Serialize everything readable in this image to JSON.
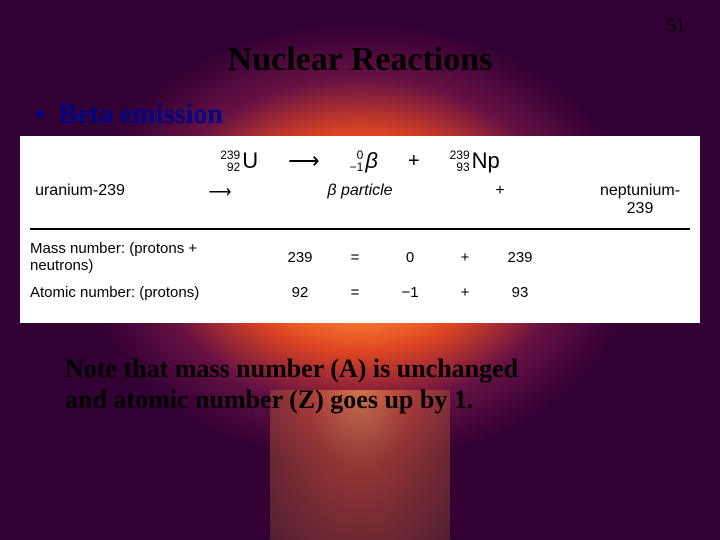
{
  "page": {
    "number": "51"
  },
  "title": "Nuclear Reactions",
  "bullet": {
    "label": "Beta emission"
  },
  "equation": {
    "reactant": {
      "mass": "239",
      "atomic": "92",
      "symbol": "U",
      "name": "uranium-239"
    },
    "arrow": "⟶",
    "particle": {
      "mass": "0",
      "atomic": "−1",
      "symbol": "β",
      "name": "β particle"
    },
    "plus": "+",
    "product": {
      "mass": "239",
      "atomic": "93",
      "symbol": "Np",
      "name": "neptunium-239"
    }
  },
  "conservation": {
    "mass": {
      "label": "Mass number: (protons + neutrons)",
      "lhs": "239",
      "eq": "=",
      "p1": "0",
      "plus": "+",
      "p2": "239"
    },
    "atomic": {
      "label": "Atomic number: (protons)",
      "lhs": "92",
      "eq": "=",
      "p1": "−1",
      "plus": "+",
      "p2": "93"
    }
  },
  "note": {
    "line1": "Note that mass number (A) is unchanged",
    "line2": "and atomic number (Z) goes up by 1."
  },
  "colors": {
    "bullet_color": "#000088",
    "text_color": "#000000",
    "panel_bg": "#ffffff"
  }
}
